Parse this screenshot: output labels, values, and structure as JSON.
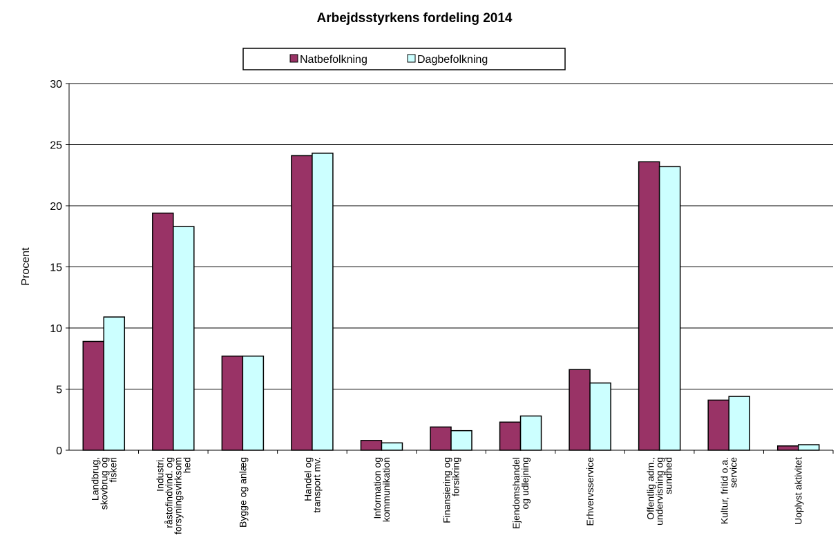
{
  "chart_data": {
    "type": "bar",
    "title": "Arbejdsstyrkens fordeling 2014",
    "y_label": "Procent",
    "categories": [
      [
        "Landbrug,",
        "skovbrug og",
        "fiskeri"
      ],
      [
        "Industri,",
        "råstofindvind. og",
        "forsyningsvirksom",
        "hed"
      ],
      [
        "Bygge og anlæg"
      ],
      [
        "Handel og",
        "transport mv."
      ],
      [
        "Information og",
        "kommunikation"
      ],
      [
        "Finansiering og",
        "forsikring"
      ],
      [
        "Ejendomshandel",
        "og udlejning"
      ],
      [
        "Erhvervsservice"
      ],
      [
        "Offentlig adm.,",
        "undervisning og",
        "sundhed"
      ],
      [
        "Kultur, fritid o.a.",
        "service"
      ],
      [
        "Uoplyst aktivitet"
      ]
    ],
    "series": [
      {
        "name": "Natbefolkning",
        "color": "#993366",
        "values": [
          8.9,
          19.4,
          7.7,
          24.1,
          0.8,
          1.9,
          2.3,
          6.6,
          23.6,
          4.1,
          0.35
        ]
      },
      {
        "name": "Dagbefolkning",
        "color": "#ccffff",
        "values": [
          10.9,
          18.3,
          7.7,
          24.3,
          0.6,
          1.6,
          2.8,
          5.5,
          23.2,
          4.4,
          0.45
        ]
      }
    ],
    "ylim": [
      0,
      30
    ],
    "yticks": [
      0,
      5,
      10,
      15,
      20,
      25,
      30
    ],
    "grid": true,
    "legend": "top"
  }
}
